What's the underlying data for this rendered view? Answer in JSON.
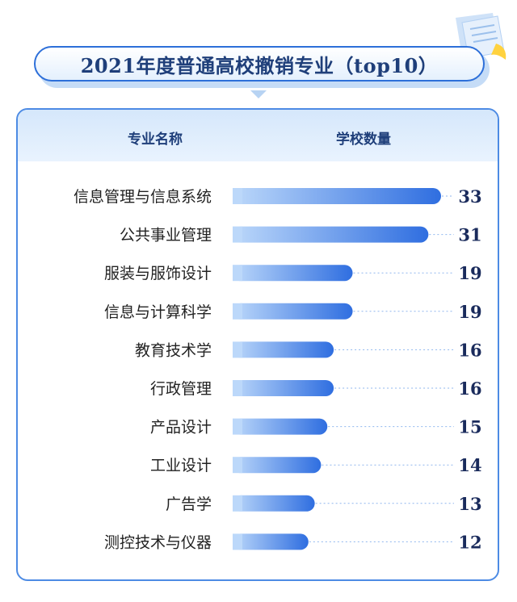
{
  "header": {
    "title": "2021年度普通高校撤销专业（top10）",
    "col_name": "专业名称",
    "col_count": "学校数量"
  },
  "colors": {
    "bar_start": "#bcd8fa",
    "bar_end": "#2f6ee0",
    "label": "#222222",
    "value": "#1a2b5c",
    "leader": "#8fb6ee"
  },
  "chart_data": {
    "type": "bar",
    "orientation": "horizontal",
    "title": "2021年度普通高校撤销专业（top10）",
    "xlabel": "学校数量",
    "ylabel": "专业名称",
    "categories": [
      "信息管理与信息系统",
      "公共事业管理",
      "服装与服饰设计",
      "信息与计算科学",
      "教育技术学",
      "行政管理",
      "产品设计",
      "工业设计",
      "广告学",
      "测控技术与仪器"
    ],
    "values": [
      33,
      31,
      19,
      19,
      16,
      16,
      15,
      14,
      13,
      12
    ],
    "data_labels": [
      "33",
      "31",
      "19",
      "19",
      "16",
      "16",
      "15",
      "14",
      "13",
      "12"
    ],
    "xlim": [
      0,
      33
    ],
    "grid": false,
    "legend": "none"
  }
}
